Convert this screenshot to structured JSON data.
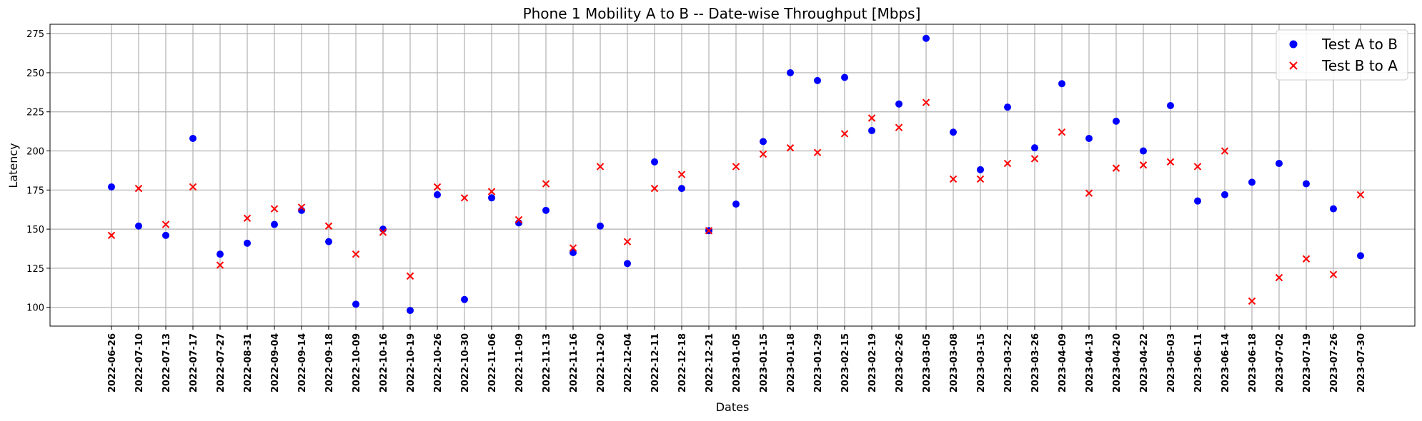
{
  "chart_data": {
    "type": "scatter",
    "title": "Phone 1 Mobility A to B -- Date-wise Throughput [Mbps]",
    "xlabel": "Dates",
    "ylabel": "Latency",
    "ylim": [
      88,
      281
    ],
    "yticks": [
      100,
      125,
      150,
      175,
      200,
      225,
      250,
      275
    ],
    "grid": true,
    "legend_position": "top-right",
    "categories": [
      "2022-06-26",
      "2022-07-10",
      "2022-07-13",
      "2022-07-17",
      "2022-07-27",
      "2022-08-31",
      "2022-09-04",
      "2022-09-14",
      "2022-09-18",
      "2022-10-09",
      "2022-10-16",
      "2022-10-19",
      "2022-10-26",
      "2022-10-30",
      "2022-11-06",
      "2022-11-09",
      "2022-11-13",
      "2022-11-16",
      "2022-11-20",
      "2022-12-04",
      "2022-12-11",
      "2022-12-18",
      "2022-12-21",
      "2023-01-05",
      "2023-01-15",
      "2023-01-18",
      "2023-01-29",
      "2023-02-15",
      "2023-02-19",
      "2023-02-26",
      "2023-03-05",
      "2023-03-08",
      "2023-03-15",
      "2023-03-22",
      "2023-03-26",
      "2023-04-09",
      "2023-04-13",
      "2023-04-20",
      "2023-04-22",
      "2023-05-03",
      "2023-06-11",
      "2023-06-14",
      "2023-06-18",
      "2023-07-02",
      "2023-07-19",
      "2023-07-26",
      "2023-07-30"
    ],
    "series": [
      {
        "name": "Test A to B",
        "marker": "circle",
        "color": "#0000ff",
        "values": [
          177,
          152,
          146,
          208,
          134,
          141,
          153,
          162,
          142,
          102,
          150,
          98,
          172,
          105,
          170,
          154,
          162,
          135,
          152,
          128,
          193,
          176,
          149,
          166,
          206,
          250,
          245,
          247,
          213,
          230,
          272,
          212,
          188,
          228,
          202,
          243,
          208,
          219,
          200,
          229,
          168,
          172,
          180,
          192,
          179,
          163,
          133
        ]
      },
      {
        "name": "Test B to A",
        "marker": "x",
        "color": "#ff0000",
        "values": [
          146,
          176,
          153,
          177,
          127,
          157,
          163,
          164,
          152,
          134,
          148,
          120,
          177,
          170,
          174,
          156,
          179,
          138,
          190,
          142,
          176,
          185,
          149,
          190,
          198,
          202,
          199,
          211,
          221,
          215,
          231,
          182,
          182,
          192,
          195,
          212,
          173,
          189,
          191,
          193,
          190,
          200,
          104,
          119,
          131,
          121,
          172
        ]
      }
    ]
  }
}
